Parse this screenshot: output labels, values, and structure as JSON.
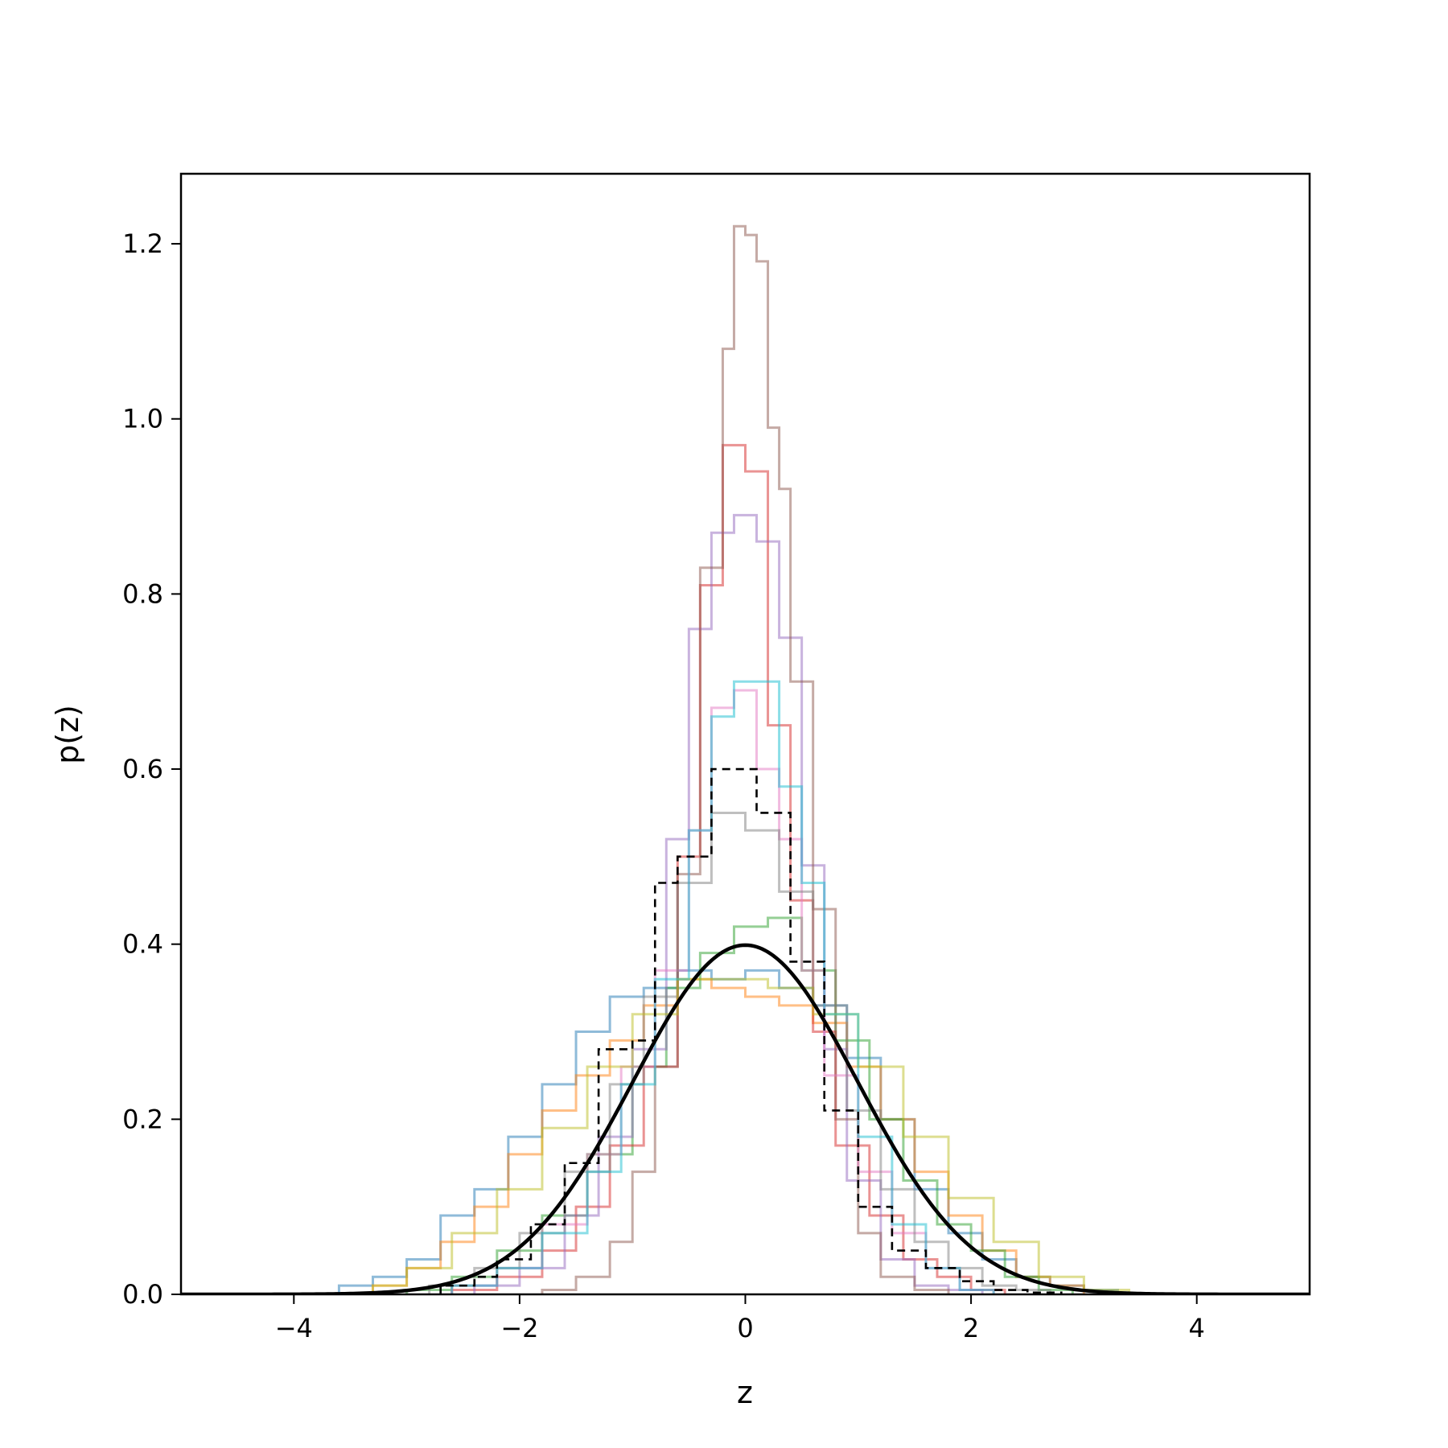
{
  "chart_data": {
    "type": "line",
    "title": "",
    "xlabel": "z",
    "ylabel": "p(z)",
    "xlim": [
      -5,
      5
    ],
    "ylim": [
      0,
      1.28
    ],
    "xticks": [
      -4,
      -2,
      0,
      2,
      4
    ],
    "xtick_labels": [
      "−4",
      "−2",
      "0",
      "2",
      "4"
    ],
    "yticks": [
      0.0,
      0.2,
      0.4,
      0.6,
      0.8,
      1.0,
      1.2
    ],
    "ytick_labels": [
      "0.0",
      "0.2",
      "0.4",
      "0.6",
      "0.8",
      "1.0",
      "1.2"
    ],
    "grid": false,
    "legend": "none",
    "reference_curve": {
      "style": "solid",
      "color": "#000000",
      "distribution": "standard normal",
      "mean": 0,
      "std": 1,
      "peak": 0.399
    },
    "series": [
      {
        "style": "step",
        "color": "#1f77b4",
        "edges": [
          -3.6,
          -3.3,
          -3.0,
          -2.7,
          -2.4,
          -2.1,
          -1.8,
          -1.5,
          -1.2,
          -0.9,
          -0.6,
          -0.3,
          0.0,
          0.3,
          0.6,
          0.9,
          1.2,
          1.5,
          1.8,
          2.1,
          2.4,
          2.7,
          3.0,
          3.3
        ],
        "values": [
          0.01,
          0.02,
          0.04,
          0.09,
          0.12,
          0.18,
          0.24,
          0.3,
          0.34,
          0.35,
          0.37,
          0.36,
          0.37,
          0.35,
          0.33,
          0.27,
          0.2,
          0.12,
          0.07,
          0.04,
          0.02,
          0.01,
          0.005
        ]
      },
      {
        "style": "step",
        "color": "#ff7f0e",
        "edges": [
          -3.3,
          -3.0,
          -2.7,
          -2.4,
          -2.1,
          -1.8,
          -1.5,
          -1.2,
          -0.9,
          -0.6,
          -0.3,
          0.0,
          0.3,
          0.6,
          0.9,
          1.2,
          1.5,
          1.8,
          2.1,
          2.4,
          2.7,
          3.0
        ],
        "values": [
          0.01,
          0.03,
          0.06,
          0.1,
          0.16,
          0.21,
          0.25,
          0.29,
          0.33,
          0.36,
          0.35,
          0.34,
          0.33,
          0.31,
          0.26,
          0.2,
          0.14,
          0.09,
          0.05,
          0.02,
          0.01
        ]
      },
      {
        "style": "step",
        "color": "#2ca02c",
        "edges": [
          -3.0,
          -2.6,
          -2.2,
          -1.8,
          -1.4,
          -1.0,
          -0.7,
          -0.4,
          -0.1,
          0.2,
          0.5,
          0.8,
          1.1,
          1.4,
          1.7,
          2.0,
          2.3,
          2.6,
          2.9
        ],
        "values": [
          0.005,
          0.02,
          0.05,
          0.09,
          0.16,
          0.26,
          0.35,
          0.39,
          0.42,
          0.43,
          0.37,
          0.29,
          0.2,
          0.13,
          0.08,
          0.05,
          0.02,
          0.005
        ]
      },
      {
        "style": "step",
        "color": "#d62728",
        "edges": [
          -2.6,
          -2.2,
          -1.8,
          -1.5,
          -1.2,
          -0.9,
          -0.6,
          -0.4,
          -0.2,
          0.0,
          0.2,
          0.4,
          0.6,
          0.8,
          1.1,
          1.4,
          1.7,
          2.0,
          2.3
        ],
        "values": [
          0.005,
          0.02,
          0.05,
          0.1,
          0.17,
          0.26,
          0.5,
          0.81,
          0.97,
          0.94,
          0.65,
          0.45,
          0.3,
          0.17,
          0.09,
          0.04,
          0.02,
          0.005
        ]
      },
      {
        "style": "step",
        "color": "#9467bd",
        "edges": [
          -2.4,
          -2.0,
          -1.6,
          -1.3,
          -1.0,
          -0.7,
          -0.5,
          -0.3,
          -0.1,
          0.1,
          0.3,
          0.5,
          0.7,
          0.9,
          1.2,
          1.5,
          1.8,
          2.1
        ],
        "values": [
          0.01,
          0.03,
          0.09,
          0.18,
          0.28,
          0.52,
          0.76,
          0.87,
          0.89,
          0.86,
          0.75,
          0.49,
          0.28,
          0.13,
          0.04,
          0.01,
          0.005
        ]
      },
      {
        "style": "step",
        "color": "#8c564b",
        "edges": [
          -1.8,
          -1.5,
          -1.2,
          -1.0,
          -0.8,
          -0.6,
          -0.4,
          -0.2,
          -0.1,
          0.0,
          0.1,
          0.2,
          0.3,
          0.4,
          0.6,
          0.8,
          1.0,
          1.2,
          1.5,
          1.8
        ],
        "values": [
          0.005,
          0.02,
          0.06,
          0.14,
          0.26,
          0.48,
          0.83,
          1.08,
          1.22,
          1.21,
          1.18,
          0.99,
          0.92,
          0.7,
          0.44,
          0.2,
          0.07,
          0.02,
          0.005
        ]
      },
      {
        "style": "step",
        "color": "#e377c2",
        "edges": [
          -2.6,
          -2.2,
          -1.8,
          -1.4,
          -1.1,
          -0.8,
          -0.5,
          -0.3,
          -0.1,
          0.1,
          0.3,
          0.5,
          0.7,
          1.0,
          1.3,
          1.6,
          1.9,
          2.2
        ],
        "values": [
          0.01,
          0.03,
          0.08,
          0.16,
          0.26,
          0.37,
          0.53,
          0.67,
          0.69,
          0.6,
          0.52,
          0.37,
          0.25,
          0.14,
          0.07,
          0.03,
          0.005
        ]
      },
      {
        "style": "step",
        "color": "#7f7f7f",
        "edges": [
          -2.8,
          -2.4,
          -2.0,
          -1.6,
          -1.2,
          -0.9,
          -0.6,
          -0.3,
          0.0,
          0.3,
          0.6,
          0.9,
          1.2,
          1.5,
          1.8,
          2.1,
          2.4,
          2.7
        ],
        "values": [
          0.01,
          0.03,
          0.07,
          0.14,
          0.24,
          0.34,
          0.47,
          0.55,
          0.53,
          0.46,
          0.33,
          0.21,
          0.12,
          0.06,
          0.03,
          0.01,
          0.005
        ]
      },
      {
        "style": "step",
        "color": "#bcbd22",
        "edges": [
          -3.3,
          -3.0,
          -2.6,
          -2.2,
          -1.8,
          -1.4,
          -1.0,
          -0.6,
          -0.2,
          0.2,
          0.6,
          1.0,
          1.4,
          1.8,
          2.2,
          2.6,
          3.0,
          3.4
        ],
        "values": [
          0.01,
          0.03,
          0.07,
          0.12,
          0.19,
          0.26,
          0.32,
          0.36,
          0.36,
          0.35,
          0.32,
          0.26,
          0.18,
          0.11,
          0.06,
          0.02,
          0.005
        ]
      },
      {
        "style": "step",
        "color": "#17becf",
        "edges": [
          -2.6,
          -2.2,
          -1.8,
          -1.4,
          -1.1,
          -0.8,
          -0.5,
          -0.3,
          -0.1,
          0.1,
          0.3,
          0.5,
          0.7,
          1.0,
          1.3,
          1.6,
          1.9,
          2.2
        ],
        "values": [
          0.01,
          0.03,
          0.07,
          0.14,
          0.24,
          0.36,
          0.53,
          0.66,
          0.7,
          0.7,
          0.58,
          0.47,
          0.32,
          0.18,
          0.08,
          0.03,
          0.005
        ]
      },
      {
        "style": "step-dashed",
        "color": "#000000",
        "edges": [
          -2.7,
          -2.4,
          -2.2,
          -1.9,
          -1.6,
          -1.3,
          -1.0,
          -0.8,
          -0.6,
          -0.3,
          0.0,
          0.1,
          0.4,
          0.7,
          1.0,
          1.3,
          1.6,
          1.9,
          2.2,
          2.5,
          2.8
        ],
        "values": [
          0.01,
          0.02,
          0.04,
          0.08,
          0.15,
          0.28,
          0.29,
          0.47,
          0.5,
          0.6,
          0.6,
          0.55,
          0.38,
          0.21,
          0.1,
          0.05,
          0.03,
          0.015,
          0.005,
          0.002
        ]
      }
    ]
  }
}
